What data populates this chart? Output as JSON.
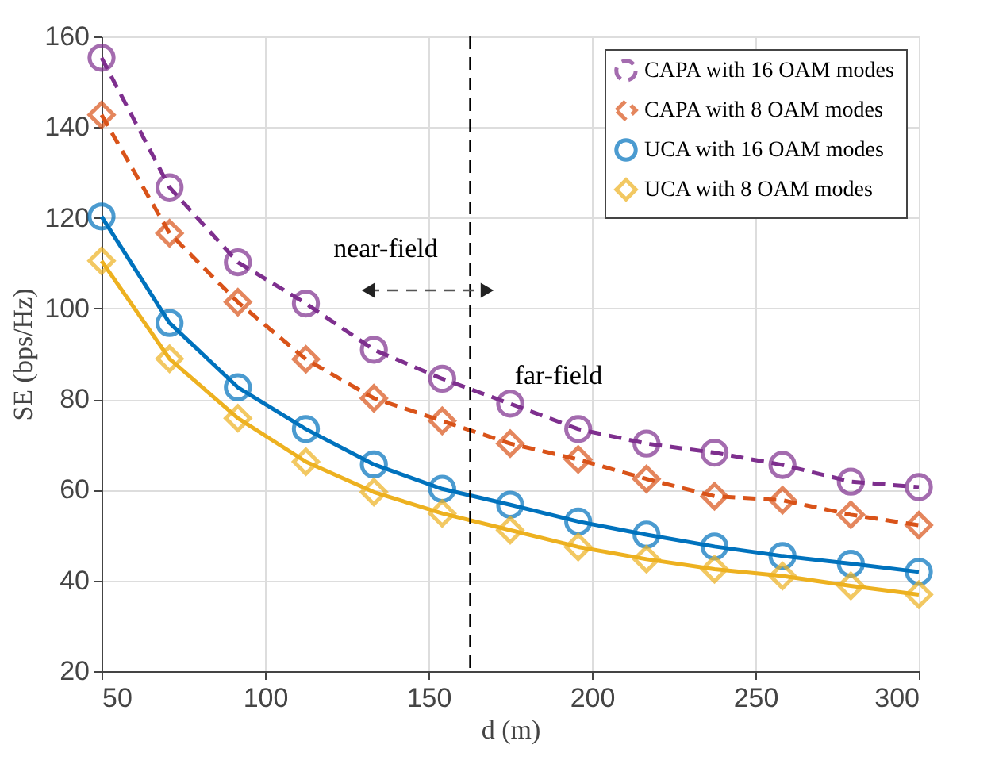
{
  "chart_data": {
    "type": "line",
    "xlabel": "d (m)",
    "ylabel": "SE (bps/Hz)",
    "x": [
      50,
      70.8,
      91.7,
      112.5,
      133.3,
      154.2,
      175,
      195.8,
      216.7,
      237.5,
      258.3,
      279.2,
      300
    ],
    "series": [
      {
        "name": "CAPA with 16 OAM modes",
        "color": "#7e2f8e",
        "marker": "circle",
        "line_style": "dashed",
        "values": [
          155.3,
          126.7,
          110.2,
          101.1,
          90.9,
          84.5,
          79.0,
          73.4,
          70.2,
          68.2,
          65.5,
          61.8,
          60.6
        ]
      },
      {
        "name": "CAPA with 8 OAM modes",
        "color": "#d95319",
        "marker": "diamond",
        "line_style": "dashed",
        "values": [
          142.7,
          116.6,
          101.4,
          88.8,
          80.2,
          75.2,
          70.2,
          66.7,
          62.4,
          58.6,
          57.7,
          54.5,
          52.2
        ]
      },
      {
        "name": "UCA with 16 OAM modes",
        "color": "#0072bd",
        "marker": "circle",
        "line_style": "solid",
        "values": [
          120.3,
          96.8,
          82.6,
          73.4,
          65.6,
          60.2,
          56.7,
          53.0,
          50.1,
          47.5,
          45.4,
          43.7,
          41.9
        ]
      },
      {
        "name": "UCA with 8 OAM modes",
        "color": "#edb120",
        "marker": "diamond",
        "line_style": "solid",
        "values": [
          110.5,
          88.9,
          75.8,
          66.2,
          59.5,
          54.8,
          51.1,
          47.4,
          44.7,
          42.5,
          41.0,
          38.8,
          36.9
        ]
      }
    ],
    "xlim": [
      50,
      300
    ],
    "xticks": [
      50,
      100,
      150,
      200,
      250,
      300
    ],
    "ylim": [
      20,
      160
    ],
    "yticks": [
      20,
      40,
      60,
      80,
      100,
      120,
      140,
      160
    ],
    "grid": true,
    "legend": "top right",
    "ref_lines": [
      {
        "axis": "x",
        "value": 162.7,
        "color": "#000000",
        "line_style": "dashed"
      }
    ],
    "annotations": [
      "near-field",
      "far-field"
    ]
  }
}
